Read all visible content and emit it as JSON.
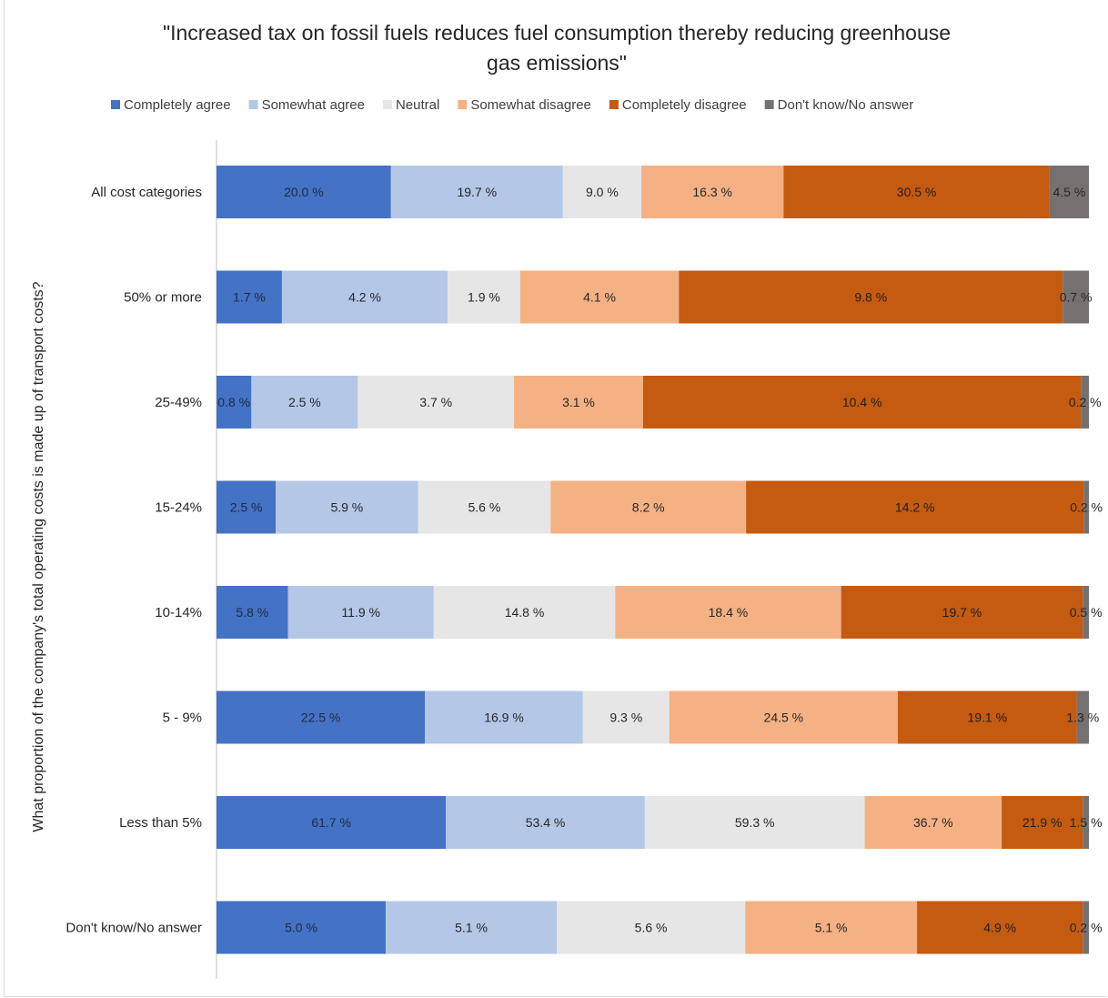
{
  "chart_data": {
    "type": "bar",
    "orientation": "horizontal",
    "stacked": "100%",
    "title": "\"Increased tax on fossil fuels reduces fuel consumption thereby reducing greenhouse gas emissions\"",
    "title_lines": [
      "\"Increased tax on fossil fuels reduces fuel consumption thereby reducing greenhouse",
      "gas emissions\""
    ],
    "ylabel": "What proportion of the company's total operating costs is made up of transport costs?",
    "xlabel": "",
    "legend_position": "top",
    "grid": false,
    "categories": [
      "All cost categories",
      "50% or more",
      "25-49%",
      "15-24%",
      "10-14%",
      "5 - 9%",
      "Less than 5%",
      "Don't know/No answer"
    ],
    "series": [
      {
        "name": "Completely agree",
        "color": "#4472c4",
        "label_color": "#1f2a44",
        "values": [
          20.0,
          1.7,
          0.8,
          2.5,
          5.8,
          22.5,
          61.7,
          5.0
        ],
        "labels": [
          "20.0 %",
          "1.7 %",
          "0.8 %",
          "2.5 %",
          "5.8 %",
          "22.5 %",
          "61.7 %",
          "5.0 %"
        ]
      },
      {
        "name": "Somewhat agree",
        "color": "#b4c7e7",
        "label_color": "#262626",
        "values": [
          19.7,
          4.2,
          2.5,
          5.9,
          11.9,
          16.9,
          53.4,
          5.1
        ],
        "labels": [
          "19.7 %",
          "4.2 %",
          "2.5 %",
          "5.9 %",
          "11.9 %",
          "16.9 %",
          "53.4 %",
          "5.1 %"
        ]
      },
      {
        "name": "Neutral",
        "color": "#e7e6e6",
        "label_color": "#262626",
        "values": [
          9.0,
          1.9,
          3.7,
          5.6,
          14.8,
          9.3,
          59.3,
          5.6
        ],
        "labels": [
          "9.0 %",
          "1.9 %",
          "3.7 %",
          "5.6 %",
          "14.8 %",
          "9.3 %",
          "59.3 %",
          "5.6 %"
        ]
      },
      {
        "name": "Somewhat disagree",
        "color": "#f4b183",
        "label_color": "#262626",
        "values": [
          16.3,
          4.1,
          3.1,
          8.2,
          18.4,
          24.5,
          36.7,
          5.1
        ],
        "labels": [
          "16.3 %",
          "4.1 %",
          "3.1 %",
          "8.2 %",
          "18.4 %",
          "24.5 %",
          "36.7 %",
          "5.1 %"
        ]
      },
      {
        "name": "Completely disagree",
        "color": "#c55a11",
        "label_color": "#1f1f1f",
        "values": [
          30.5,
          9.8,
          10.4,
          14.2,
          19.7,
          19.1,
          21.9,
          4.9
        ],
        "labels": [
          "30.5 %",
          "9.8 %",
          "10.4 %",
          "14.2 %",
          "19.7 %",
          "19.1 %",
          "21.9 %",
          "4.9 %"
        ]
      },
      {
        "name": "Don't know/No answer",
        "color": "#767171",
        "label_color": "#262626",
        "values": [
          4.5,
          0.7,
          0.2,
          0.2,
          0.5,
          1.3,
          1.5,
          0.2
        ],
        "labels": [
          "4.5 %",
          "0.7 %",
          "0.2 %",
          "0.2 %",
          "0.5 %",
          "1.3 %",
          "1.5 %",
          "0.2 %"
        ]
      }
    ],
    "bar_widths_percent": [
      [
        20.0,
        19.7,
        9.0,
        16.3,
        30.5,
        4.5
      ],
      [
        7.5,
        19.0,
        8.3,
        18.2,
        44.0,
        3.0
      ],
      [
        4.0,
        12.2,
        17.9,
        14.8,
        50.2,
        0.9
      ],
      [
        6.8,
        16.3,
        15.2,
        22.4,
        38.7,
        0.6
      ],
      [
        8.2,
        16.7,
        20.8,
        25.9,
        27.7,
        0.7
      ],
      [
        23.9,
        18.1,
        9.9,
        26.2,
        20.5,
        1.4
      ],
      [
        26.3,
        22.8,
        25.2,
        15.7,
        9.3,
        0.7
      ],
      [
        19.4,
        19.6,
        21.6,
        19.7,
        19.0,
        0.7
      ]
    ],
    "xlim": [
      0,
      100
    ]
  }
}
